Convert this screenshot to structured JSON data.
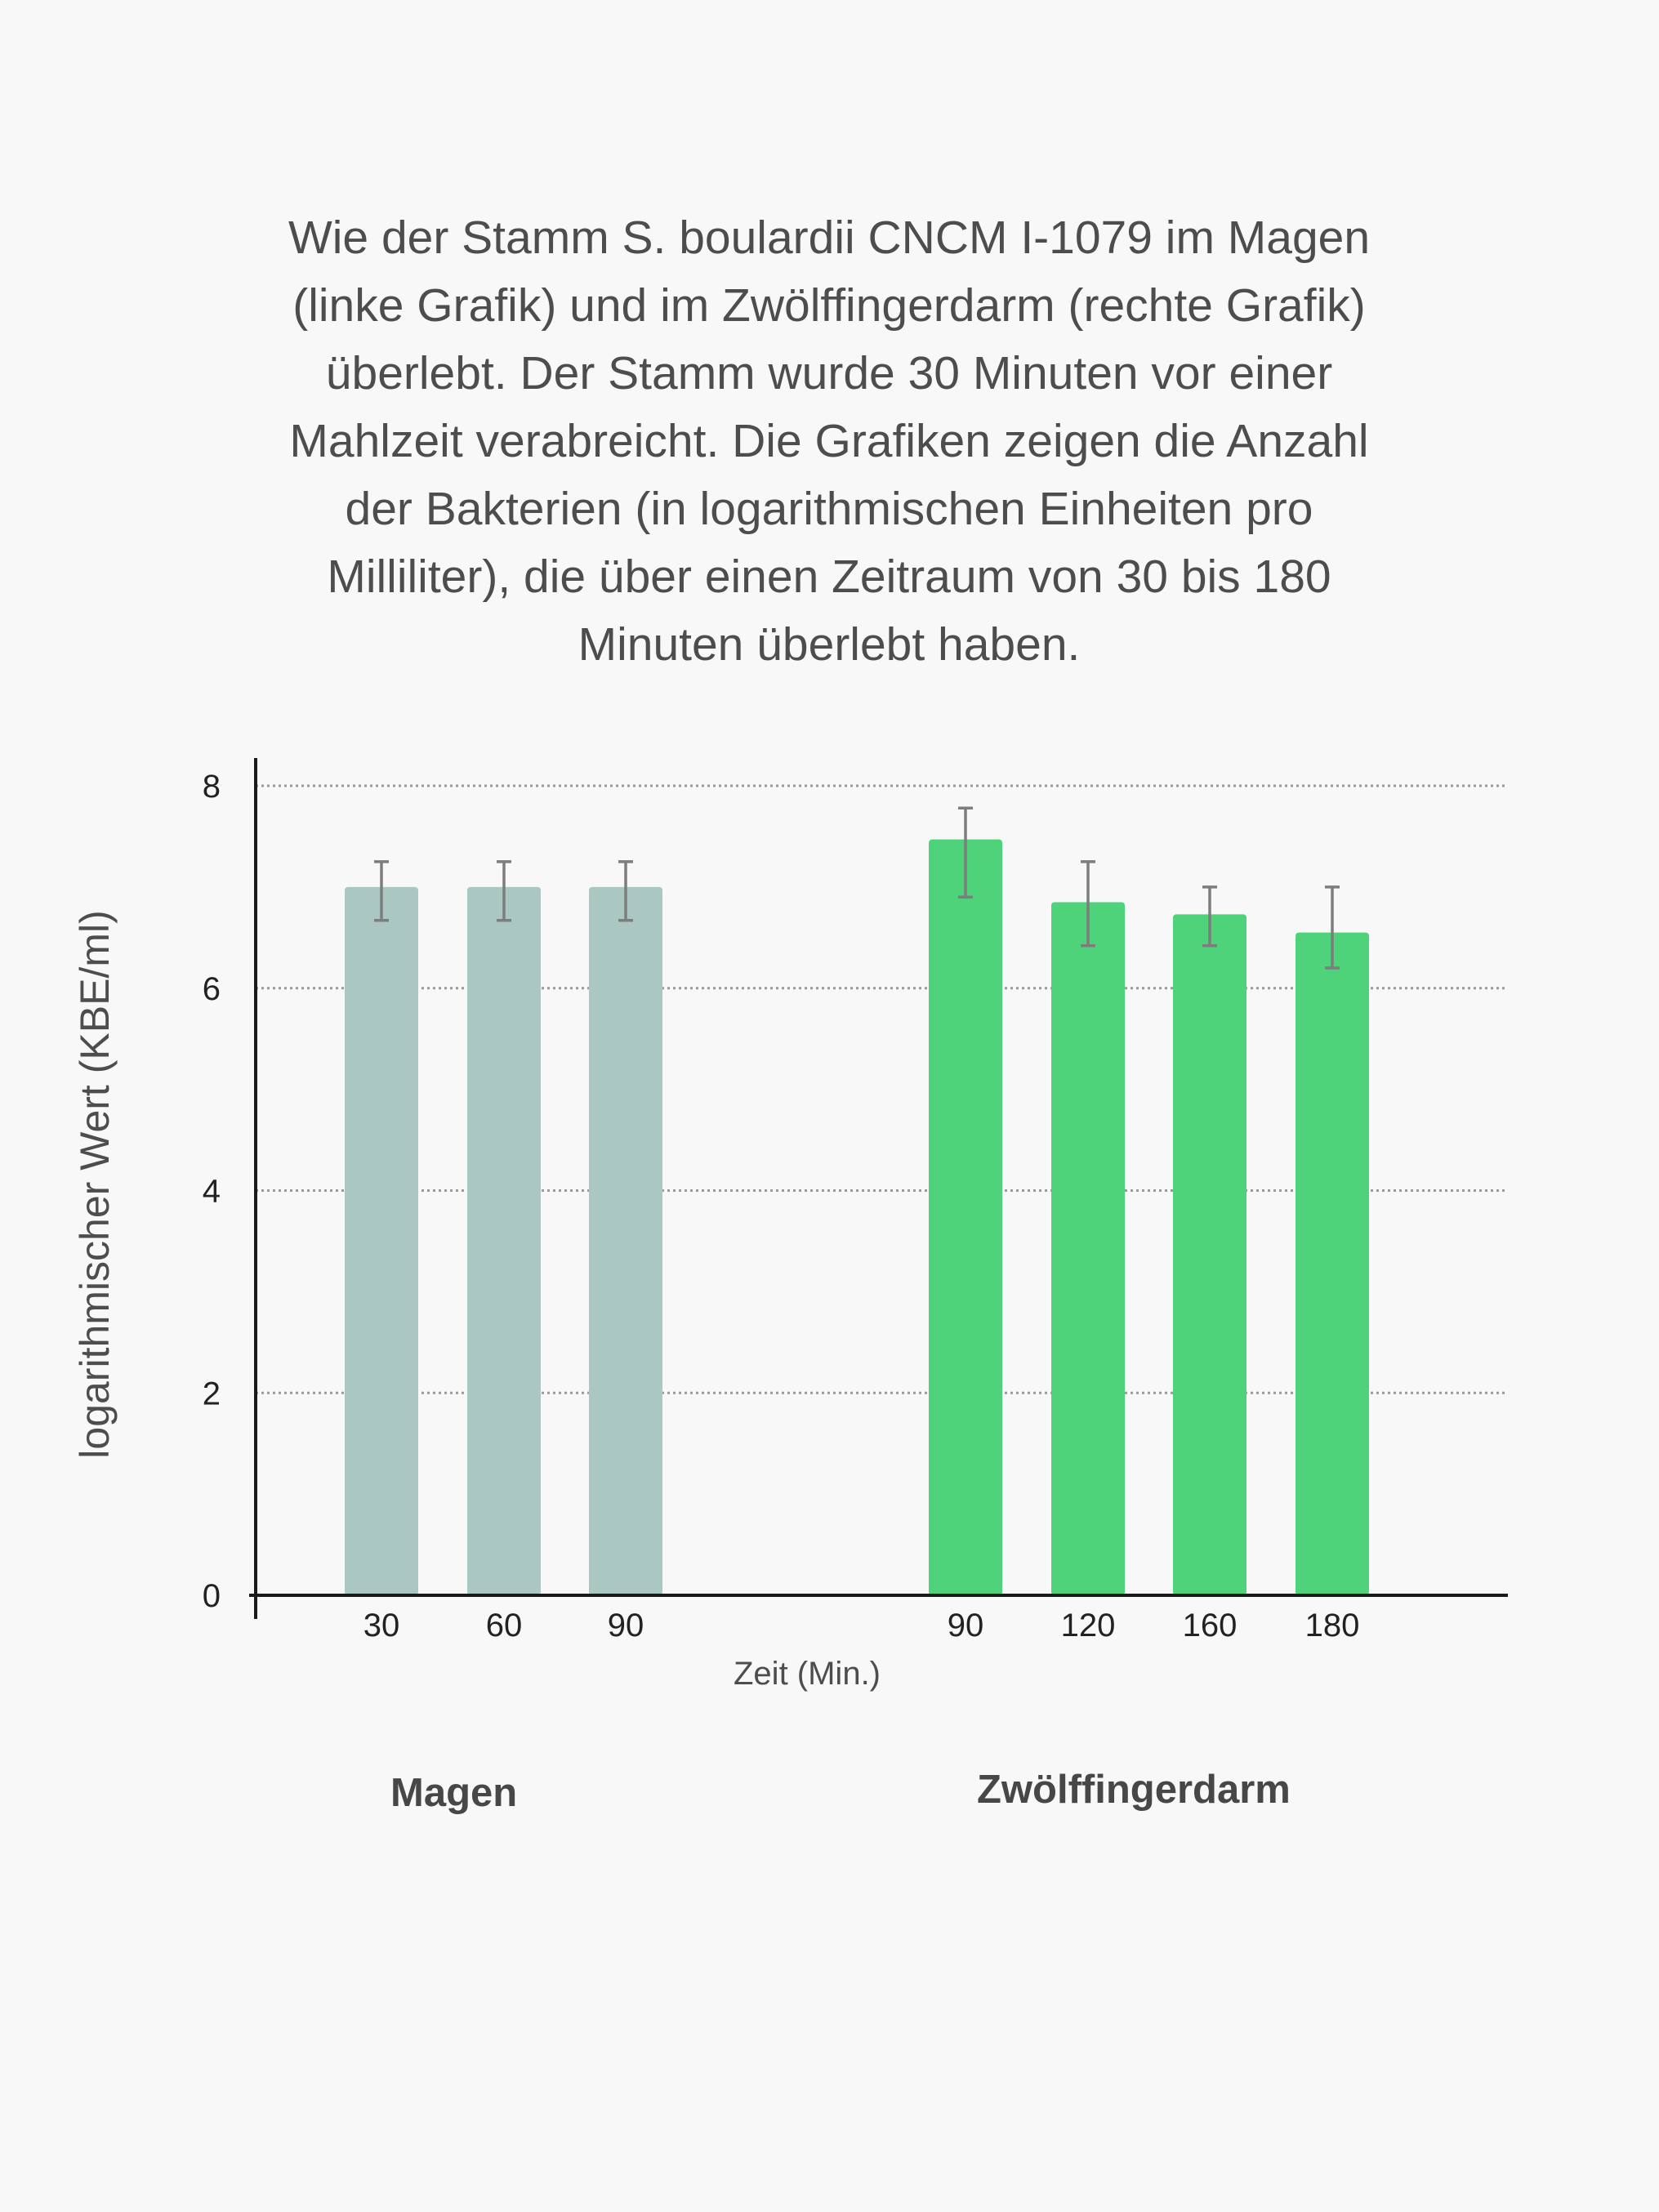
{
  "caption_lines": [
    "Wie der Stamm S. boulardii CNCM I-1079 im Magen",
    "(linke Grafik) und im Zwölffingerdarm (rechte Grafik)",
    "überlebt. Der Stamm wurde 30 Minuten vor einer",
    "Mahlzeit verabreicht. Die Grafiken zeigen die Anzahl",
    "der Bakterien (in logarithmischen Einheiten pro",
    "Milliliter), die über einen Zeitraum von 30 bis 180",
    "Minuten überlebt haben."
  ],
  "colors": {
    "magen_bar": "#aac8c1",
    "darm_bar": "#4ed27a",
    "error_bar": "#7d7d7d",
    "grid": "#9a9a9a",
    "axis": "#1a1a1a"
  },
  "chart_data": {
    "type": "bar",
    "xlabel": "Zeit (Min.)",
    "ylabel": "logarithmischer Wert (KBE/ml)",
    "ylim": [
      0,
      8
    ],
    "yticks": [
      "0",
      "2",
      "4",
      "6",
      "8"
    ],
    "grid": "horizontal dotted",
    "groups": [
      {
        "name": "Magen",
        "categories": [
          "30",
          "60",
          "90"
        ],
        "values": [
          7.0,
          7.0,
          7.0
        ],
        "error_low": [
          6.67,
          6.67,
          6.67
        ],
        "error_high": [
          7.25,
          7.25,
          7.25
        ]
      },
      {
        "name": "Zwölffingerdarm",
        "categories": [
          "90",
          "120",
          "160",
          "180"
        ],
        "values": [
          7.47,
          6.85,
          6.73,
          6.55
        ],
        "error_low": [
          6.9,
          6.42,
          6.42,
          6.2
        ],
        "error_high": [
          7.78,
          7.25,
          7.0,
          7.0
        ]
      }
    ]
  }
}
